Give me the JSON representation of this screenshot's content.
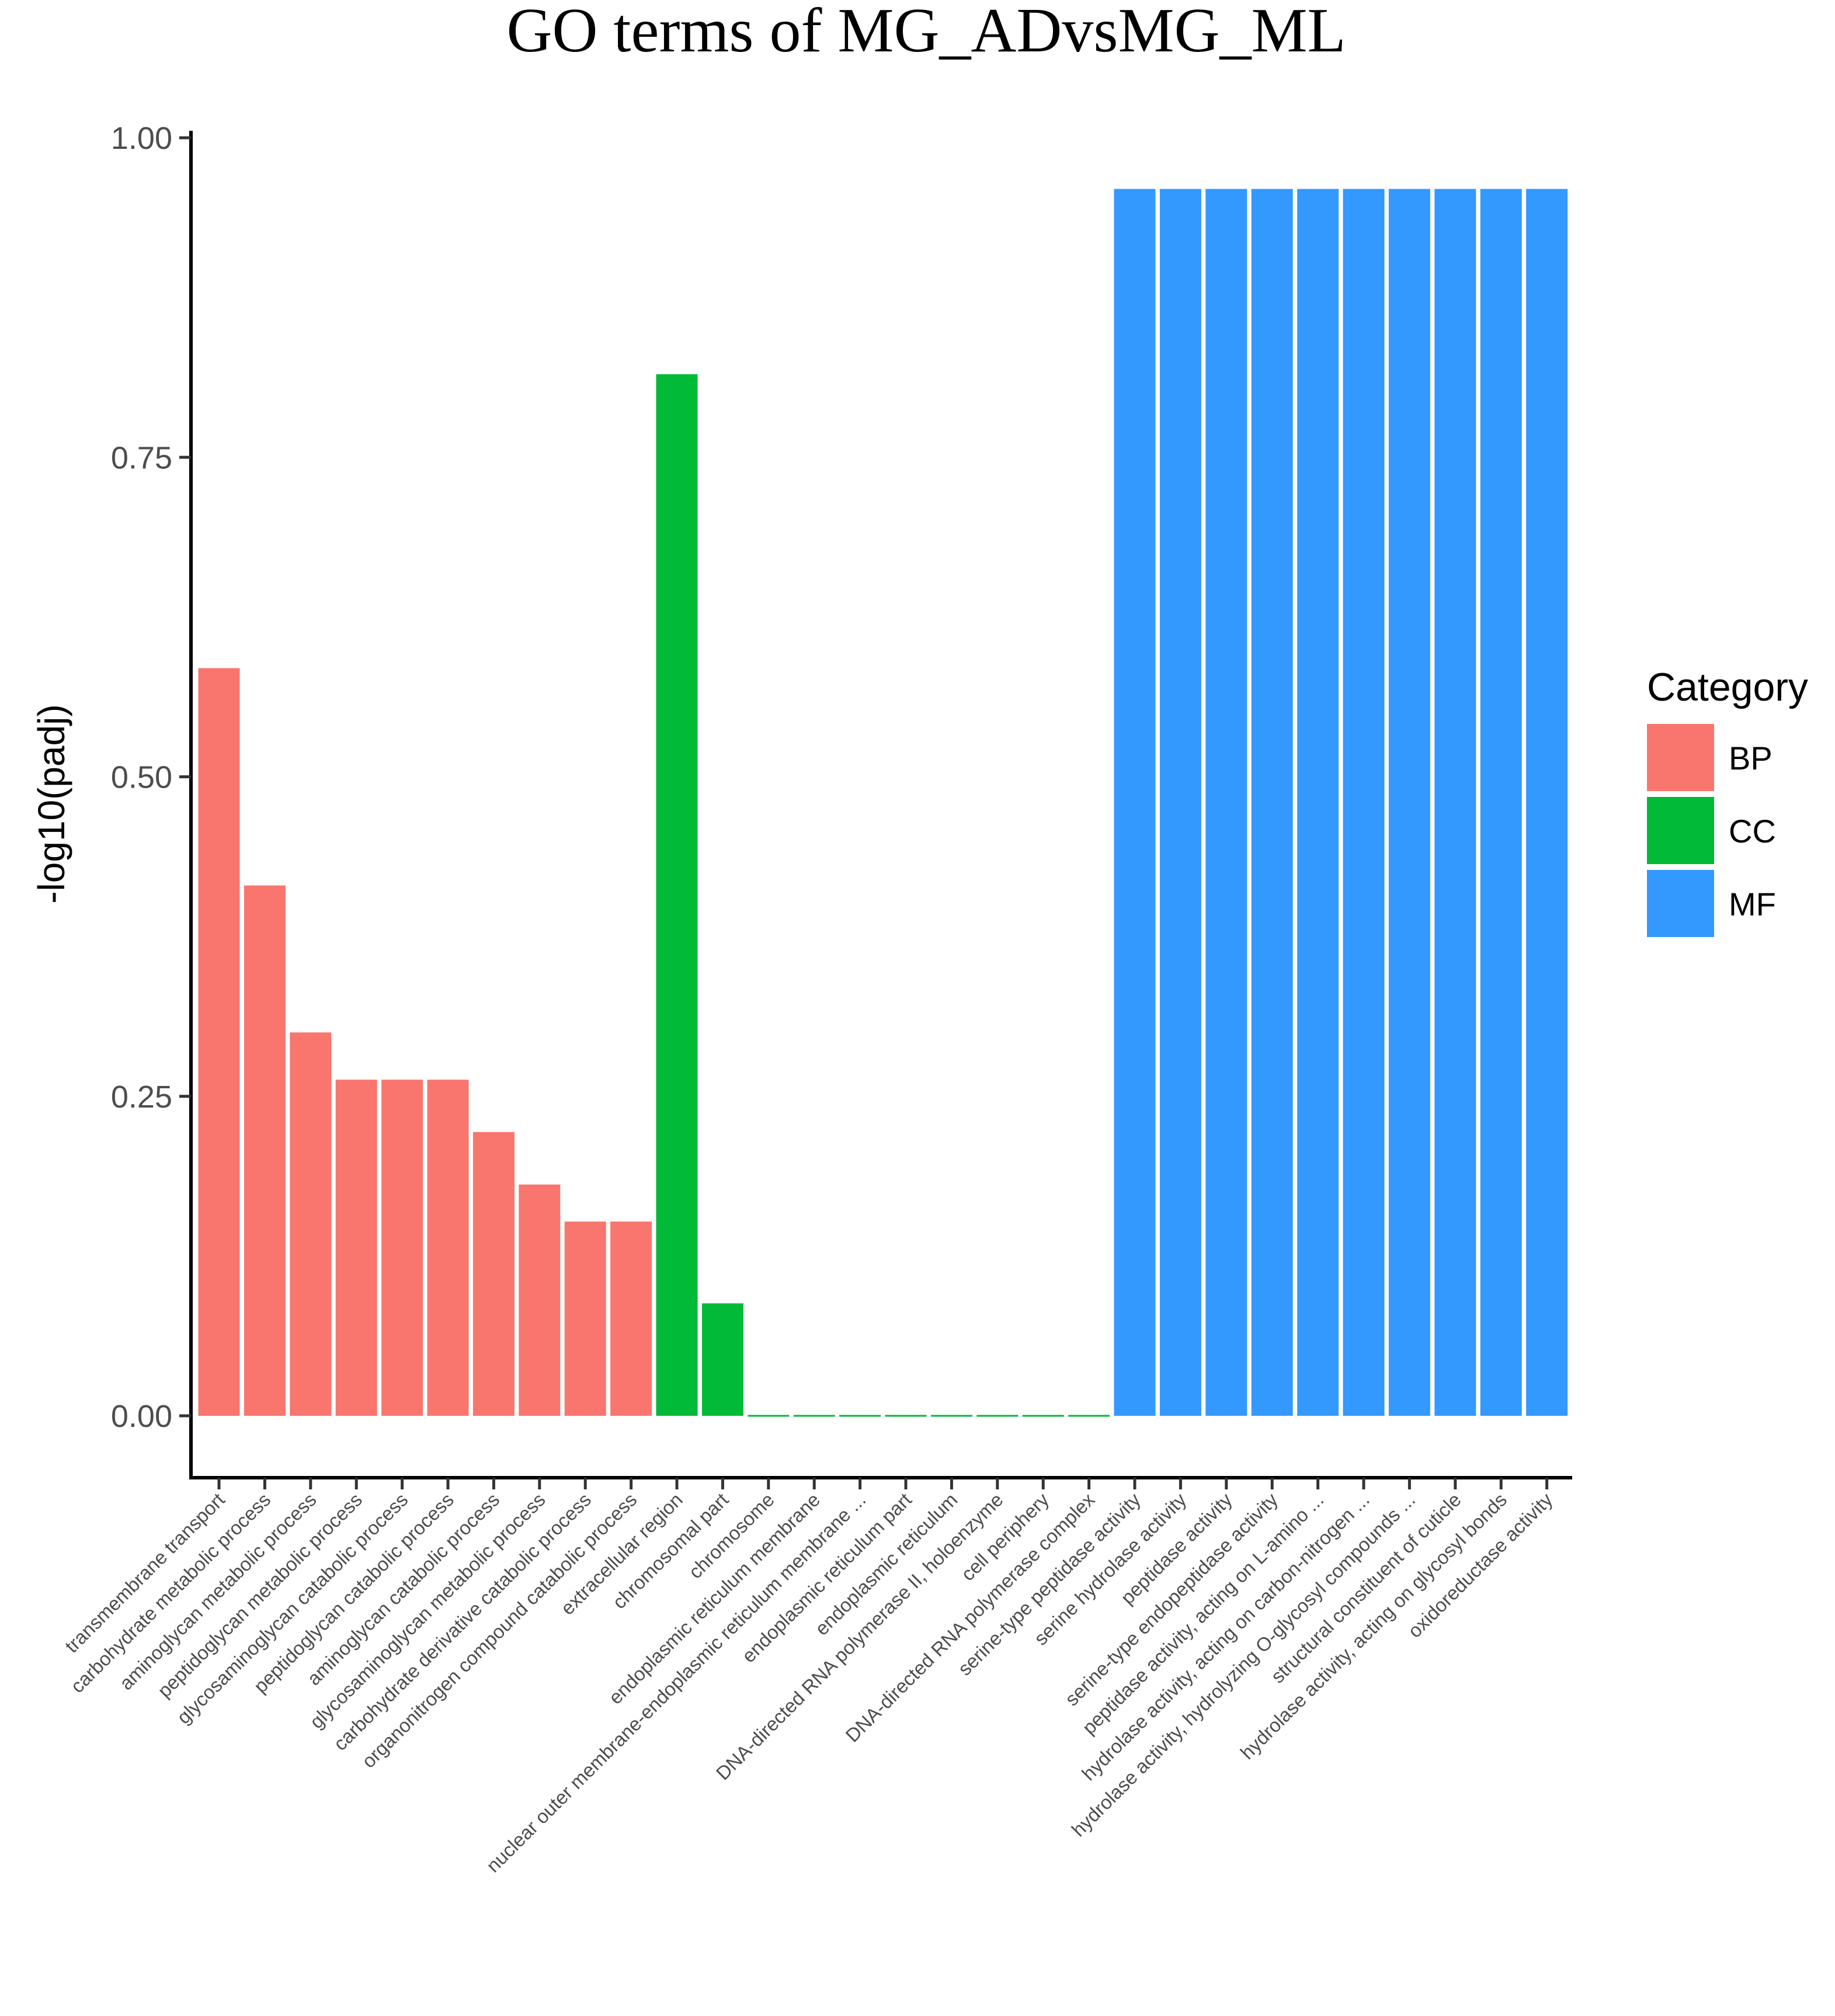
{
  "chart_data": {
    "type": "bar",
    "title": "GO terms of  MG_ADvsMG_ML",
    "xlabel": "",
    "ylabel": "-log10(padj)",
    "ylim": [
      -0.05,
      1.0
    ],
    "yticks": [
      0.0,
      0.25,
      0.5,
      0.75,
      1.0
    ],
    "ytick_labels": [
      "0.00",
      "0.25",
      "0.50",
      "0.75",
      "1.00"
    ],
    "grid": false,
    "legend": {
      "title": "Category",
      "position": "right",
      "entries": [
        {
          "name": "BP",
          "color": "#F8766D"
        },
        {
          "name": "CC",
          "color": "#00BA38"
        },
        {
          "name": "MF",
          "color": "#3399FF"
        }
      ]
    },
    "bars": [
      {
        "label": "transmembrane transport",
        "value": 0.585,
        "category": "BP"
      },
      {
        "label": "carbohydrate metabolic process",
        "value": 0.415,
        "category": "BP"
      },
      {
        "label": "aminoglycan metabolic process",
        "value": 0.3,
        "category": "BP"
      },
      {
        "label": "peptidoglycan metabolic process",
        "value": 0.263,
        "category": "BP"
      },
      {
        "label": "glycosaminoglycan catabolic process",
        "value": 0.263,
        "category": "BP"
      },
      {
        "label": "peptidoglycan catabolic process",
        "value": 0.263,
        "category": "BP"
      },
      {
        "label": "aminoglycan catabolic process",
        "value": 0.222,
        "category": "BP"
      },
      {
        "label": "glycosaminoglycan metabolic process",
        "value": 0.181,
        "category": "BP"
      },
      {
        "label": "carbohydrate derivative catabolic process",
        "value": 0.152,
        "category": "BP"
      },
      {
        "label": "organonitrogen compound catabolic process",
        "value": 0.152,
        "category": "BP"
      },
      {
        "label": "extracellular region",
        "value": 0.815,
        "category": "CC"
      },
      {
        "label": "chromosomal part",
        "value": 0.088,
        "category": "CC"
      },
      {
        "label": "chromosome",
        "value": 0.0,
        "category": "CC"
      },
      {
        "label": "endoplasmic reticulum membrane",
        "value": 0.0,
        "category": "CC"
      },
      {
        "label": "nuclear outer membrane-endoplasmic reticulum membrane ...",
        "value": 0.0,
        "category": "CC"
      },
      {
        "label": "endoplasmic reticulum part",
        "value": 0.0,
        "category": "CC"
      },
      {
        "label": "endoplasmic reticulum",
        "value": 0.0,
        "category": "CC"
      },
      {
        "label": "DNA-directed RNA polymerase II, holoenzyme",
        "value": 0.0,
        "category": "CC"
      },
      {
        "label": "cell periphery",
        "value": 0.0,
        "category": "CC"
      },
      {
        "label": "DNA-directed RNA polymerase complex",
        "value": 0.0,
        "category": "CC"
      },
      {
        "label": "serine-type peptidase activity",
        "value": 0.96,
        "category": "MF"
      },
      {
        "label": "serine hydrolase activity",
        "value": 0.96,
        "category": "MF"
      },
      {
        "label": "peptidase activity",
        "value": 0.96,
        "category": "MF"
      },
      {
        "label": "serine-type endopeptidase activity",
        "value": 0.96,
        "category": "MF"
      },
      {
        "label": "peptidase activity, acting on L-amino ...",
        "value": 0.96,
        "category": "MF"
      },
      {
        "label": "hydrolase activity, acting on carbon-nitrogen ...",
        "value": 0.96,
        "category": "MF"
      },
      {
        "label": "hydrolase activity, hydrolyzing O-glycosyl compounds ...",
        "value": 0.96,
        "category": "MF"
      },
      {
        "label": "structural constituent of cuticle",
        "value": 0.96,
        "category": "MF"
      },
      {
        "label": "hydrolase activity, acting on glycosyl bonds",
        "value": 0.96,
        "category": "MF"
      },
      {
        "label": "oxidoreductase activity",
        "value": 0.96,
        "category": "MF"
      }
    ]
  }
}
